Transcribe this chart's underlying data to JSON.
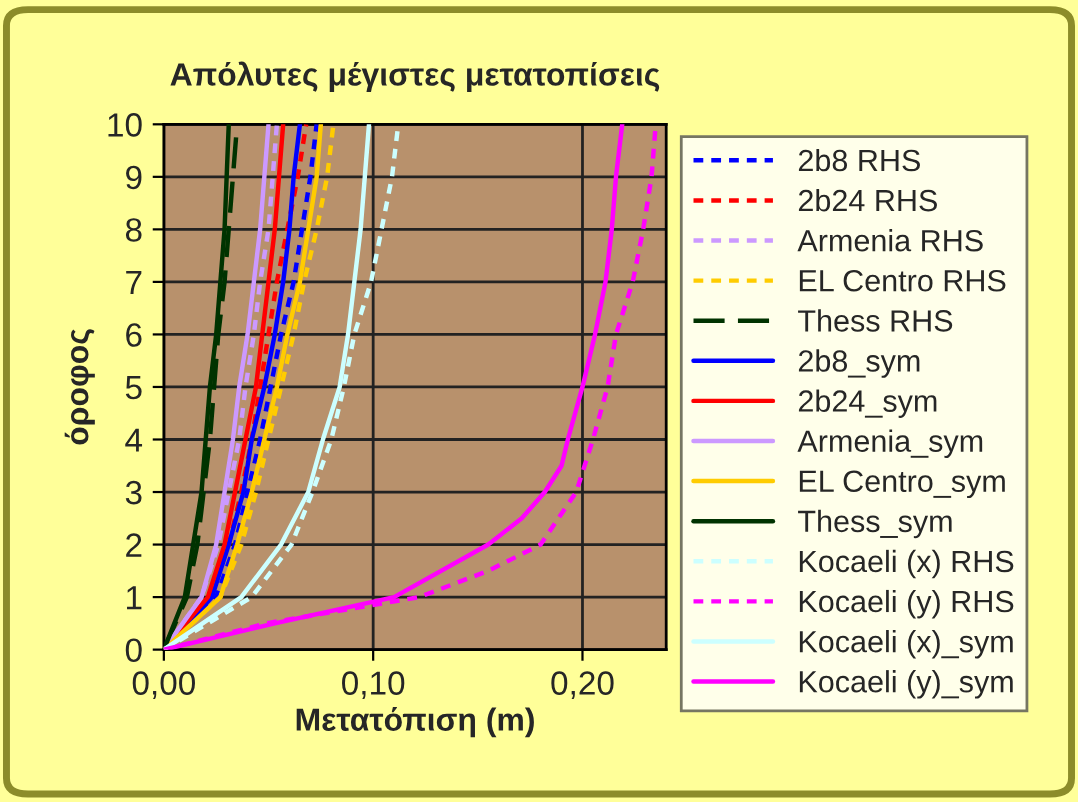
{
  "chart_data": {
    "type": "line",
    "title": "Απόλυτες μέγιστες μετατοπίσεις",
    "xlabel": "Μετατόπιση (m)",
    "ylabel": "όροφος",
    "xlim": [
      0,
      0.24
    ],
    "xticks": [
      {
        "value": 0,
        "label": "0,00"
      },
      {
        "value": 0.1,
        "label": "0,10"
      },
      {
        "value": 0.2,
        "label": "0,20"
      }
    ],
    "ylim": [
      0,
      10
    ],
    "yticks": [
      0,
      1,
      2,
      3,
      4,
      5,
      6,
      7,
      8,
      9,
      10
    ],
    "grid": true,
    "legend": "right",
    "marker": "none",
    "series": [
      {
        "name": "2b8 RHS",
        "color": "#0000ff",
        "line_style": "dotted",
        "x": [
          0,
          0.025,
          0.034,
          0.04,
          0.046,
          0.051,
          0.056,
          0.062,
          0.066,
          0.07,
          0.073
        ],
        "values": [
          0,
          1,
          2,
          3,
          4,
          5,
          6,
          7,
          8,
          9,
          10
        ]
      },
      {
        "name": "2b24 RHS",
        "color": "#ff0000",
        "line_style": "dotted",
        "x": [
          0,
          0.022,
          0.031,
          0.037,
          0.042,
          0.046,
          0.05,
          0.054,
          0.059,
          0.064,
          0.068
        ],
        "values": [
          0,
          1,
          2,
          3,
          4,
          5,
          6,
          7,
          8,
          9,
          10
        ]
      },
      {
        "name": "Armenia RHS",
        "color": "#cc99ff",
        "line_style": "dotted",
        "x": [
          0,
          0.018,
          0.026,
          0.031,
          0.036,
          0.039,
          0.043,
          0.046,
          0.05,
          0.052,
          0.054
        ],
        "values": [
          0,
          1,
          2,
          3,
          4,
          5,
          6,
          7,
          8,
          9,
          10
        ]
      },
      {
        "name": "EL Centro RHS",
        "color": "#ffcc00",
        "line_style": "dotted",
        "x": [
          0,
          0.027,
          0.037,
          0.044,
          0.05,
          0.056,
          0.062,
          0.067,
          0.073,
          0.078,
          0.081
        ],
        "values": [
          0,
          1,
          2,
          3,
          4,
          5,
          6,
          7,
          8,
          9,
          10
        ]
      },
      {
        "name": "Thess RHS",
        "color": "#003300",
        "line_style": "dashed",
        "x": [
          0,
          0.011,
          0.016,
          0.019,
          0.022,
          0.024,
          0.026,
          0.029,
          0.031,
          0.033,
          0.035
        ],
        "values": [
          0,
          1,
          2,
          3,
          4,
          5,
          6,
          7,
          8,
          9,
          10
        ]
      },
      {
        "name": "2b8_sym",
        "color": "#0000ff",
        "line_style": "solid",
        "x": [
          0,
          0.023,
          0.031,
          0.038,
          0.042,
          0.048,
          0.053,
          0.057,
          0.06,
          0.062,
          0.065
        ],
        "values": [
          0,
          1,
          2,
          3,
          4,
          5,
          6,
          7,
          8,
          9,
          10
        ]
      },
      {
        "name": "2b24_sym",
        "color": "#ff0000",
        "line_style": "solid",
        "x": [
          0,
          0.021,
          0.029,
          0.034,
          0.039,
          0.044,
          0.047,
          0.05,
          0.053,
          0.055,
          0.057
        ],
        "values": [
          0,
          1,
          2,
          3,
          4,
          5,
          6,
          7,
          8,
          9,
          10
        ]
      },
      {
        "name": "Armenia_sym",
        "color": "#cc99ff",
        "line_style": "solid",
        "x": [
          0,
          0.018,
          0.025,
          0.029,
          0.033,
          0.036,
          0.04,
          0.043,
          0.046,
          0.048,
          0.05
        ],
        "values": [
          0,
          1,
          2,
          3,
          4,
          5,
          6,
          7,
          8,
          9,
          10
        ]
      },
      {
        "name": "EL Centro_sym",
        "color": "#ffcc00",
        "line_style": "solid",
        "x": [
          0,
          0.027,
          0.035,
          0.042,
          0.048,
          0.054,
          0.059,
          0.065,
          0.069,
          0.073,
          0.075
        ],
        "values": [
          0,
          1,
          2,
          3,
          4,
          5,
          6,
          7,
          8,
          9,
          10
        ]
      },
      {
        "name": "Thess_sym",
        "color": "#003300",
        "line_style": "solid",
        "x": [
          0,
          0.01,
          0.014,
          0.018,
          0.02,
          0.022,
          0.025,
          0.027,
          0.029,
          0.03,
          0.031
        ],
        "values": [
          0,
          1,
          2,
          3,
          4,
          5,
          6,
          7,
          8,
          9,
          10
        ]
      },
      {
        "name": "Kocaeli (x) RHS",
        "color": "#ccffff",
        "line_style": "dotted",
        "x": [
          0,
          0.042,
          0.061,
          0.071,
          0.08,
          0.086,
          0.091,
          0.099,
          0.104,
          0.109,
          0.112
        ],
        "values": [
          0,
          1,
          2,
          3,
          4,
          5,
          6,
          7,
          8,
          9,
          10
        ]
      },
      {
        "name": "Kocaeli (y) RHS",
        "color": "#ff00ff",
        "line_style": "dotted",
        "x": [
          0,
          0.049,
          0.122,
          0.155,
          0.18,
          0.197,
          0.205,
          0.212,
          0.216,
          0.224,
          0.229,
          0.233,
          0.235
        ],
        "values": [
          0,
          0.5,
          1,
          1.5,
          2,
          3,
          4,
          5,
          6,
          7,
          8,
          9,
          10
        ]
      },
      {
        "name": "Kocaeli (x)_sym",
        "color": "#ccffff",
        "line_style": "solid",
        "x": [
          0,
          0.037,
          0.056,
          0.069,
          0.076,
          0.084,
          0.088,
          0.091,
          0.094,
          0.096,
          0.098
        ],
        "values": [
          0,
          1,
          2,
          3,
          4,
          5,
          6,
          7,
          8,
          9,
          10
        ]
      },
      {
        "name": "Kocaeli (y)_sym",
        "color": "#ff00ff",
        "line_style": "solid",
        "x": [
          0,
          0.053,
          0.11,
          0.155,
          0.171,
          0.182,
          0.19,
          0.193,
          0.2,
          0.206,
          0.211,
          0.214,
          0.216,
          0.219
        ],
        "values": [
          0,
          0.5,
          1,
          2,
          2.5,
          3,
          3.5,
          4,
          5,
          6,
          7,
          8,
          9,
          10
        ]
      }
    ]
  }
}
